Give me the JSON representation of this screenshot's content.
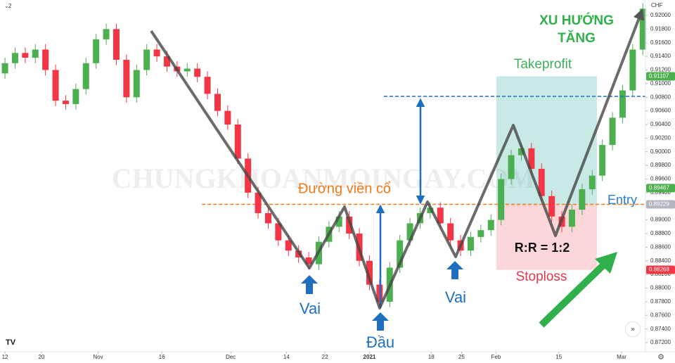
{
  "chart_data": {
    "type": "candlestick",
    "currency": "CHF",
    "badge": "2",
    "watermark": "CHUNGKHOANMOINGAY.COM",
    "open": [
      0.9115,
      0.913,
      0.9145,
      0.9138,
      0.915,
      0.912,
      0.9075,
      0.907,
      0.9092,
      0.913,
      0.9165,
      0.918,
      0.9135,
      0.908,
      0.912,
      0.915,
      0.914,
      0.9125,
      0.9118,
      0.9122,
      0.911,
      0.9085,
      0.906,
      0.904,
      0.899,
      0.894,
      0.891,
      0.8895,
      0.887,
      0.8855,
      0.8845,
      0.8835,
      0.8868,
      0.889,
      0.8905,
      0.888,
      0.884,
      0.8805,
      0.878,
      0.883,
      0.887,
      0.8895,
      0.891,
      0.8918,
      0.8895,
      0.887,
      0.8855,
      0.8875,
      0.8885,
      0.89,
      0.896,
      0.8995,
      0.9005,
      0.8975,
      0.8935,
      0.8905,
      0.889,
      0.8915,
      0.8945,
      0.8965,
      0.901,
      0.905,
      0.909,
      0.915
    ],
    "high": [
      0.9138,
      0.9153,
      0.9153,
      0.9158,
      0.9158,
      0.9128,
      0.9083,
      0.91,
      0.9138,
      0.9173,
      0.9188,
      0.9188,
      0.9143,
      0.9128,
      0.9158,
      0.9158,
      0.9148,
      0.9133,
      0.913,
      0.913,
      0.9118,
      0.9093,
      0.9068,
      0.9048,
      0.8998,
      0.8948,
      0.8918,
      0.8903,
      0.8878,
      0.8863,
      0.8853,
      0.8876,
      0.8898,
      0.8913,
      0.8913,
      0.8888,
      0.8848,
      0.8813,
      0.8838,
      0.8878,
      0.8903,
      0.8918,
      0.8926,
      0.8926,
      0.8903,
      0.8878,
      0.8883,
      0.8893,
      0.8908,
      0.8968,
      0.9003,
      0.9013,
      0.9013,
      0.8983,
      0.8943,
      0.8913,
      0.8923,
      0.8953,
      0.8973,
      0.9018,
      0.9058,
      0.9098,
      0.9158,
      0.9218
    ],
    "low": [
      0.9107,
      0.9122,
      0.913,
      0.913,
      0.9112,
      0.9067,
      0.9062,
      0.9062,
      0.9084,
      0.9122,
      0.9157,
      0.9127,
      0.9072,
      0.9072,
      0.9112,
      0.9132,
      0.9117,
      0.911,
      0.911,
      0.9102,
      0.9077,
      0.9052,
      0.9032,
      0.8982,
      0.8932,
      0.8902,
      0.8887,
      0.8862,
      0.8847,
      0.8837,
      0.8827,
      0.8827,
      0.886,
      0.8882,
      0.8872,
      0.8832,
      0.8797,
      0.8772,
      0.8772,
      0.8822,
      0.8862,
      0.8887,
      0.8902,
      0.8887,
      0.8862,
      0.8847,
      0.8847,
      0.8867,
      0.8877,
      0.8892,
      0.8952,
      0.8987,
      0.8967,
      0.8927,
      0.8897,
      0.8882,
      0.8882,
      0.8907,
      0.8937,
      0.8957,
      0.9002,
      0.9042,
      0.9082,
      0.9142
    ],
    "close": [
      0.913,
      0.9145,
      0.9138,
      0.915,
      0.912,
      0.9075,
      0.907,
      0.9092,
      0.913,
      0.9165,
      0.918,
      0.9135,
      0.908,
      0.912,
      0.915,
      0.914,
      0.9125,
      0.9118,
      0.9122,
      0.911,
      0.9085,
      0.906,
      0.904,
      0.899,
      0.894,
      0.891,
      0.8895,
      0.887,
      0.8855,
      0.8845,
      0.8835,
      0.8868,
      0.889,
      0.8905,
      0.888,
      0.884,
      0.8805,
      0.878,
      0.883,
      0.887,
      0.8895,
      0.891,
      0.8918,
      0.8895,
      0.887,
      0.8855,
      0.8875,
      0.8885,
      0.89,
      0.896,
      0.8995,
      0.9005,
      0.8975,
      0.8935,
      0.8905,
      0.889,
      0.8915,
      0.8945,
      0.8965,
      0.901,
      0.905,
      0.909,
      0.915,
      0.921
    ],
    "up_color": "#4caf50",
    "down_color": "#f23645",
    "xlim": [
      -0.49,
      63.26
    ],
    "xticks": [
      {
        "value": 0,
        "label": "12"
      },
      {
        "value": 3.6,
        "label": "20"
      },
      {
        "value": 9.2,
        "label": "Nov"
      },
      {
        "value": 15.5,
        "label": "16"
      },
      {
        "value": 22.3,
        "label": "Dec"
      },
      {
        "value": 27.8,
        "label": "14"
      },
      {
        "value": 31.6,
        "label": "22"
      },
      {
        "value": 36,
        "label": "2021"
      },
      {
        "value": 42.1,
        "label": "18"
      },
      {
        "value": 45.1,
        "label": "25"
      },
      {
        "value": 48.5,
        "label": "Feb"
      },
      {
        "value": 54.7,
        "label": "15"
      },
      {
        "value": 60.9,
        "label": "Mar"
      }
    ],
    "ylim": [
      0.87066,
      0.92227
    ],
    "yticks": [
      {
        "value": 0.872,
        "label": "0.87200"
      },
      {
        "value": 0.874,
        "label": "0.87400"
      },
      {
        "value": 0.876,
        "label": "0.87600"
      },
      {
        "value": 0.878,
        "label": "0.87800"
      },
      {
        "value": 0.88,
        "label": "0.88000"
      },
      {
        "value": 0.882,
        "label": "0.88200"
      },
      {
        "value": 0.884,
        "label": "0.88400"
      },
      {
        "value": 0.886,
        "label": "0.88600"
      },
      {
        "value": 0.888,
        "label": "0.88800"
      },
      {
        "value": 0.89,
        "label": "0.89000"
      },
      {
        "value": 0.892,
        "label": "0.89200"
      },
      {
        "value": 0.894,
        "label": "0.89400"
      },
      {
        "value": 0.896,
        "label": "0.89600"
      },
      {
        "value": 0.898,
        "label": "0.89800"
      },
      {
        "value": 0.9,
        "label": "0.90000"
      },
      {
        "value": 0.902,
        "label": "0.90200"
      },
      {
        "value": 0.904,
        "label": "0.90400"
      },
      {
        "value": 0.906,
        "label": "0.90600"
      },
      {
        "value": 0.908,
        "label": "0.90800"
      },
      {
        "value": 0.91,
        "label": "0.91000"
      },
      {
        "value": 0.912,
        "label": "0.91200"
      },
      {
        "value": 0.914,
        "label": "0.91400"
      },
      {
        "value": 0.916,
        "label": "0.91600"
      },
      {
        "value": 0.918,
        "label": "0.91800"
      },
      {
        "value": 0.92,
        "label": "0.92000"
      }
    ],
    "levels": {
      "takeprofit": {
        "value": 0.91107,
        "color": "#4caf50"
      },
      "current": {
        "value": 0.89467,
        "color": "#4caf50"
      },
      "entry": {
        "value": 0.89229,
        "color": "#b2b5be"
      },
      "stoploss": {
        "value": 0.88268,
        "color": "#f23645"
      }
    },
    "annotations": {
      "neckline": "Đường viền cổ",
      "takeprofit": "Takeprofit",
      "entry": "Entry",
      "stoploss": "Stoploss",
      "rr": "R:R = 1:2",
      "trend": [
        "XU HƯỚNG",
        "TĂNG"
      ],
      "shoulder_left": "Vai",
      "head": "Đầu",
      "shoulder_right": "Vai"
    }
  }
}
